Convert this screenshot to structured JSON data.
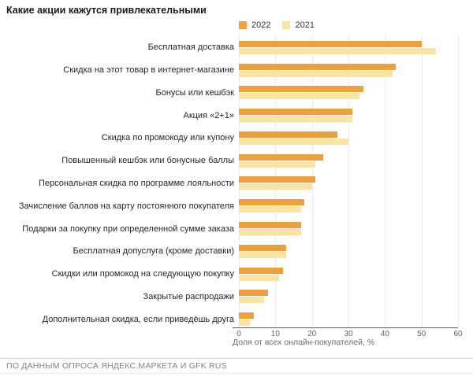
{
  "title": "Какие акции кажутся привлекательными",
  "footer": {
    "source": "ПО ДАННЫМ ОПРОСА ЯНДЕКС.МАРКЕТА И GFK RUS"
  },
  "chart_data": {
    "type": "bar",
    "orientation": "horizontal",
    "title": "Какие акции кажутся привлекательными",
    "xlabel": "Доля от всех онлайн-покупателей, %",
    "xlim": [
      0,
      60
    ],
    "xticks": [
      0,
      10,
      20,
      30,
      40,
      50,
      60
    ],
    "grid": true,
    "legend_position": "top",
    "categories": [
      "Бесплатная доставка",
      "Скидка на этот товар в интернет-магазине",
      "Бонусы или кешбэк",
      "Акция «2+1»",
      "Скидка по промокоду или купону",
      "Повышенный кешбэк или бонусные баллы",
      "Персональная скидка по программе лояльности",
      "Зачисление баллов на карту постоянного покупателя",
      "Подарки за покупку при определенной сумме заказа",
      "Бесплатная допуслуга (кроме доставки)",
      "Скидки или промокод на следующую покупку",
      "Закрытые распродажи",
      "Дополнительная скидка, если приведёшь друга"
    ],
    "series": [
      {
        "name": "2022",
        "color": "#EFA03C",
        "values": [
          50,
          43,
          34,
          31,
          27,
          23,
          21,
          18,
          17,
          13,
          12,
          8,
          4
        ]
      },
      {
        "name": "2021",
        "color": "#FBE4A3",
        "values": [
          54,
          42,
          33,
          31,
          30,
          21,
          20,
          17,
          17,
          13,
          11,
          7,
          3
        ]
      }
    ],
    "colors": {
      "axis_line": "#595959",
      "gridline": "#ececec"
    }
  }
}
